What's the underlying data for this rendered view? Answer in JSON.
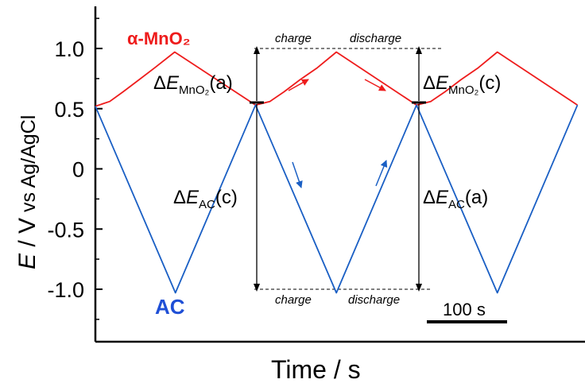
{
  "chart_data": {
    "type": "line",
    "xlabel": "Time / s",
    "ylabel_main": "E",
    "ylabel_rest": " / V",
    "ylabel_small": " vs Ag/AgCl",
    "ylim": [
      -1.35,
      1.35
    ],
    "yticks": [
      "1.0",
      "0.5",
      "0",
      "-0.5",
      "-1.0"
    ],
    "ytick_values": [
      1.0,
      0.5,
      0,
      -0.5,
      -1.0
    ],
    "xlim": [
      0,
      610
    ],
    "series": [
      {
        "name": "α-MnO₂",
        "color": "#ee1c1c",
        "x": [
          0,
          18,
          35,
          55,
          75,
          100,
          202,
          220,
          238,
          258,
          280,
          304,
          405,
          423,
          441,
          461,
          483,
          507,
          608
        ],
        "y": [
          0.52,
          0.56,
          0.64,
          0.74,
          0.84,
          0.97,
          0.53,
          0.56,
          0.64,
          0.74,
          0.84,
          0.97,
          0.53,
          0.56,
          0.64,
          0.74,
          0.84,
          0.97,
          0.53
        ]
      },
      {
        "name": "AC",
        "color": "#1a5fc4",
        "x": [
          0,
          101,
          202,
          304,
          405,
          507,
          608
        ],
        "y": [
          0.52,
          -1.03,
          0.53,
          -1.03,
          0.53,
          -1.03,
          0.53
        ]
      }
    ],
    "annotations": {
      "charge_top": "charge",
      "discharge_top": "discharge",
      "charge_bottom": "charge",
      "discharge_bottom": "discharge",
      "delta_symbol": "Δ",
      "e_letter": "E",
      "sub_mno2": "MnO₂",
      "sub_ac": "AC",
      "mno2_a": "(a)",
      "mno2_c": "(c)",
      "ac_c": "(c)",
      "ac_a": "(a)",
      "scale_bar": "100 s"
    }
  }
}
